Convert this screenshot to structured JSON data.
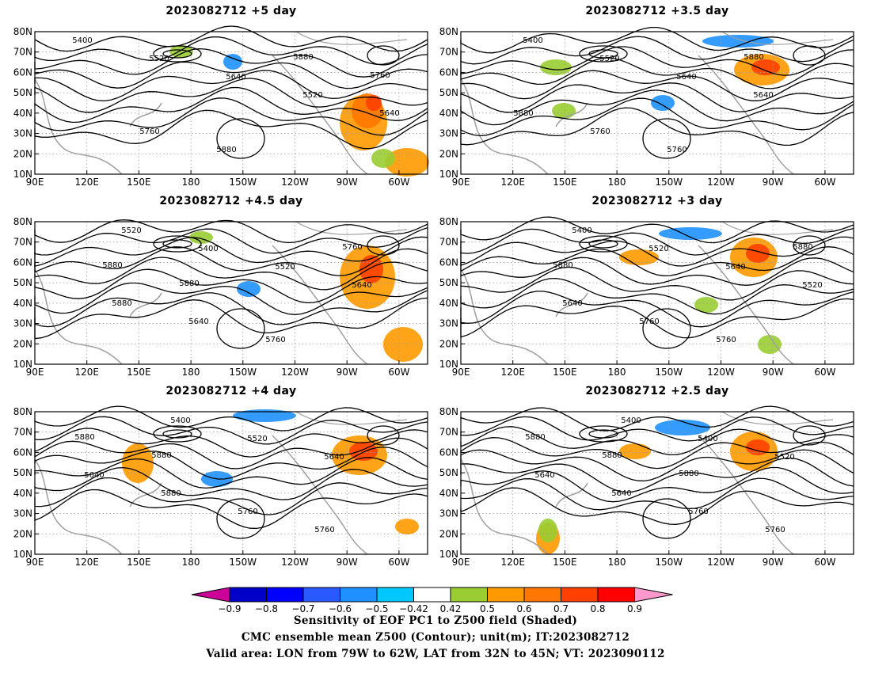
{
  "panels": [
    {
      "title": "2023082712 +5 day"
    },
    {
      "title": "2023082712 +3.5 day"
    },
    {
      "title": "2023082712 +4.5 day"
    },
    {
      "title": "2023082712 +3 day"
    },
    {
      "title": "2023082712 +4 day"
    },
    {
      "title": "2023082712 +2.5 day"
    }
  ],
  "axes": {
    "lat_labels": [
      "80N",
      "70N",
      "60N",
      "50N",
      "40N",
      "30N",
      "20N",
      "10N"
    ],
    "lon_labels": [
      "90E",
      "120E",
      "150E",
      "180",
      "150W",
      "120W",
      "90W",
      "60W"
    ]
  },
  "panel_contour_labels": [
    [
      "5400",
      "5520",
      "5640",
      "5520",
      "5640",
      "5760",
      "5880",
      "5880",
      "5760"
    ],
    [
      "5400",
      "5520",
      "5640",
      "5640",
      "5880",
      "5760",
      "5760",
      "5880"
    ],
    [
      "5520",
      "5400",
      "5520",
      "5640",
      "5880",
      "5640",
      "5760",
      "5760",
      "5880",
      "5880"
    ],
    [
      "5400",
      "5520",
      "5640",
      "5520",
      "5640",
      "5760",
      "5760",
      "5880",
      "5880"
    ],
    [
      "5400",
      "5520",
      "5640",
      "5640",
      "5880",
      "5760",
      "5760",
      "5880",
      "5880"
    ],
    [
      "5400",
      "5400",
      "5520",
      "5640",
      "5640",
      "5760",
      "5760",
      "5880",
      "5880",
      "5880"
    ]
  ],
  "colorbar": {
    "labels": [
      "−0.9",
      "−0.8",
      "−0.7",
      "−0.6",
      "−0.5",
      "−0.42",
      "0.42",
      "0.5",
      "0.6",
      "0.7",
      "0.8",
      "0.9"
    ],
    "colors": [
      "#0000c8",
      "#0000ff",
      "#2a5aff",
      "#1e90ff",
      "#00c8ff",
      "#ffffff",
      "#9acd32",
      "#ff9900",
      "#ff7700",
      "#ff4000",
      "#ff0000"
    ],
    "low_end_color": "#cc0099",
    "high_end_color": "#ff99cc"
  },
  "caption": {
    "line1": "Sensitivity of EOF PC1 to Z500 field (Shaded)",
    "line2": "CMC ensemble mean Z500 (Contour); unit(m); IT:2023082712",
    "line3": "Valid area: LON from 79W to 62W, LAT from 32N to 45N; VT: 2023090112"
  }
}
